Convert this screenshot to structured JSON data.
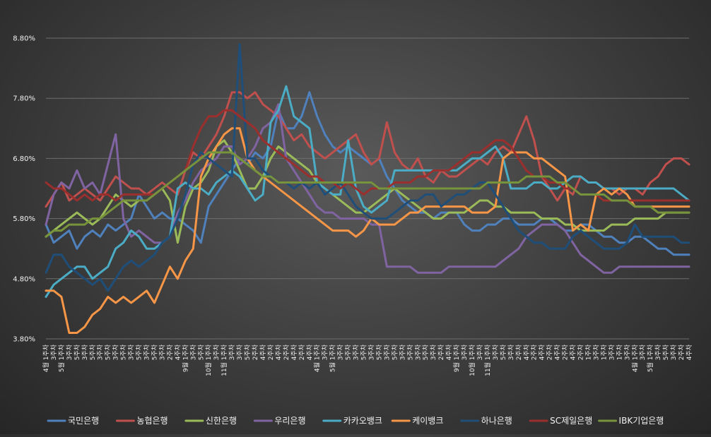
{
  "chart_data": {
    "type": "line",
    "ylim": [
      3.8,
      8.8
    ],
    "y_ticks": [
      "3.80%",
      "4.80%",
      "5.80%",
      "6.80%",
      "7.80%",
      "8.80%"
    ],
    "y_tick_values": [
      3.8,
      4.8,
      5.8,
      6.8,
      7.8,
      8.8
    ],
    "grid": true,
    "legend_position": "bottom",
    "x_labels": [
      "4월 1주차",
      "3주차",
      "5월 1주차",
      "3주차",
      "5주차",
      "3주차",
      "5주차",
      "3주차",
      "5주차",
      "3주차",
      "5주차",
      "3주차",
      "5주차",
      "3주차",
      "5주차",
      "3주차",
      "2주차",
      "4주차",
      "9월 1주차",
      "3주차",
      "5주차",
      "10월 1주차",
      "3주차",
      "11월 1주차",
      "3주차",
      "3주차",
      "5주차",
      "2주차",
      "4주차",
      "2주차",
      "4주차",
      "2주차",
      "4주차",
      "2주차",
      "4주차",
      "4월 1주차",
      "3주차",
      "5월 1주차",
      "3주차",
      "5주차",
      "3주차",
      "5주차",
      "3주차",
      "5주차",
      "3주차",
      "5주차",
      "3주차",
      "5주차",
      "3주차",
      "5주차",
      "3주차",
      "2주차",
      "4주차",
      "9월 1주차",
      "3주차",
      "10월 1주차",
      "3주차",
      "11월 1주차",
      "3주차",
      "5주차",
      "3주차",
      "2주차",
      "4주차",
      "2주차",
      "4주차",
      "2주차",
      "4주차",
      "2주차",
      "4주차",
      "2주차",
      "1주차",
      "3주차",
      "1주차",
      "3주차",
      "1주차",
      "3주차",
      "4월 1주차",
      "3주차",
      "5월 1주차",
      "3주차",
      "5주차",
      "3주차",
      "2주차",
      "4주차"
    ],
    "series": [
      {
        "name": "국민은행",
        "color": "#4f81bd",
        "values": [
          5.7,
          5.4,
          5.5,
          5.6,
          5.3,
          5.5,
          5.6,
          5.5,
          5.7,
          5.6,
          5.7,
          5.8,
          6.2,
          6.0,
          5.8,
          5.9,
          5.8,
          5.8,
          5.7,
          5.6,
          5.4,
          6.0,
          6.2,
          6.4,
          6.6,
          6.8,
          6.7,
          6.9,
          6.8,
          7.0,
          7.6,
          7.3,
          7.3,
          7.5,
          7.9,
          7.5,
          7.2,
          7.0,
          6.9,
          7.0,
          6.9,
          6.8,
          6.7,
          6.8,
          6.5,
          6.3,
          6.1,
          6.0,
          5.9,
          5.9,
          5.8,
          5.9,
          5.9,
          5.9,
          5.7,
          5.6,
          5.6,
          5.7,
          5.7,
          5.8,
          5.8,
          5.7,
          5.7,
          5.7,
          5.8,
          5.8,
          5.7,
          5.6,
          5.6,
          5.7,
          5.7,
          5.6,
          5.5,
          5.5,
          5.4,
          5.4,
          5.5,
          5.5,
          5.4,
          5.3,
          5.3,
          5.2,
          5.2,
          5.2
        ]
      },
      {
        "name": "농협은행",
        "color": "#c0504d",
        "values": [
          6.0,
          6.2,
          6.4,
          6.1,
          6.2,
          6.3,
          6.2,
          6.1,
          6.3,
          6.5,
          6.4,
          6.3,
          6.3,
          6.2,
          6.3,
          6.4,
          6.3,
          6.2,
          6.6,
          6.9,
          6.8,
          7.0,
          7.2,
          7.5,
          7.9,
          7.9,
          7.8,
          7.9,
          7.7,
          7.6,
          7.5,
          7.3,
          7.1,
          7.2,
          7.0,
          6.9,
          6.8,
          6.9,
          7.0,
          7.1,
          7.2,
          6.9,
          6.7,
          6.8,
          7.4,
          6.9,
          6.7,
          6.6,
          6.8,
          6.5,
          6.4,
          6.6,
          6.5,
          6.5,
          6.6,
          6.7,
          6.8,
          6.7,
          6.9,
          7.0,
          6.9,
          7.2,
          7.5,
          7.1,
          6.5,
          6.3,
          6.1,
          6.3,
          6.2,
          6.5,
          6.4,
          6.4,
          6.3,
          6.3,
          6.2,
          6.3,
          6.3,
          6.2,
          6.4,
          6.5,
          6.7,
          6.8,
          6.8,
          6.7
        ]
      },
      {
        "name": "신한은행",
        "color": "#9bbb59",
        "values": [
          5.5,
          5.6,
          5.7,
          5.8,
          5.9,
          5.8,
          5.7,
          5.8,
          6.0,
          6.2,
          6.1,
          6.0,
          6.1,
          6.1,
          6.2,
          6.3,
          6.1,
          5.4,
          6.0,
          6.3,
          6.4,
          6.6,
          7.0,
          7.1,
          6.9,
          6.6,
          6.3,
          6.3,
          6.5,
          6.8,
          7.0,
          6.9,
          6.8,
          6.7,
          6.6,
          6.4,
          6.3,
          6.2,
          6.1,
          6.0,
          5.9,
          5.9,
          6.0,
          6.1,
          6.2,
          6.3,
          6.2,
          6.1,
          6.0,
          5.9,
          5.8,
          5.8,
          5.9,
          5.9,
          5.9,
          6.0,
          6.1,
          6.1,
          6.0,
          6.0,
          5.9,
          5.9,
          5.9,
          5.9,
          5.8,
          5.8,
          5.8,
          5.7,
          5.7,
          5.6,
          5.6,
          5.6,
          5.6,
          5.7,
          5.7,
          5.7,
          5.8,
          5.8,
          5.8,
          5.8,
          5.9,
          5.9,
          5.9,
          5.9
        ]
      },
      {
        "name": "우리은행",
        "color": "#8064a2",
        "values": [
          5.7,
          6.2,
          6.4,
          6.3,
          6.6,
          6.3,
          6.4,
          6.2,
          6.7,
          7.2,
          5.8,
          5.5,
          5.6,
          5.5,
          5.4,
          5.4,
          5.5,
          5.9,
          6.1,
          6.4,
          6.6,
          6.7,
          6.8,
          7.0,
          7.0,
          6.7,
          6.8,
          7.0,
          7.3,
          7.4,
          7.7,
          6.8,
          6.6,
          6.4,
          6.2,
          6.0,
          5.9,
          5.9,
          5.8,
          5.8,
          5.8,
          5.8,
          5.7,
          5.7,
          5.0,
          5.0,
          5.0,
          5.0,
          4.9,
          4.9,
          4.9,
          4.9,
          5.0,
          5.0,
          5.0,
          5.0,
          5.0,
          5.0,
          5.0,
          5.1,
          5.2,
          5.3,
          5.5,
          5.6,
          5.7,
          5.7,
          5.7,
          5.6,
          5.4,
          5.2,
          5.1,
          5.0,
          4.9,
          4.9,
          5.0,
          5.0,
          5.0,
          5.0,
          5.0,
          5.0,
          5.0,
          5.0,
          5.0,
          5.0
        ]
      },
      {
        "name": "카카오뱅크",
        "color": "#4bacc6",
        "values": [
          4.5,
          4.7,
          4.8,
          4.9,
          5.0,
          5.0,
          4.8,
          4.9,
          5.0,
          5.3,
          5.4,
          5.6,
          5.5,
          5.3,
          5.3,
          5.4,
          5.5,
          6.3,
          6.4,
          6.3,
          6.3,
          6.2,
          6.4,
          6.5,
          6.6,
          6.5,
          6.3,
          6.1,
          6.2,
          7.4,
          7.6,
          8.0,
          7.5,
          7.4,
          7.3,
          6.4,
          6.3,
          6.2,
          6.2,
          7.1,
          6.3,
          6.0,
          5.9,
          6.0,
          6.1,
          6.6,
          6.6,
          6.6,
          6.6,
          6.6,
          6.6,
          6.6,
          6.6,
          6.6,
          6.7,
          6.8,
          6.8,
          6.9,
          7.0,
          6.8,
          6.3,
          6.3,
          6.3,
          6.4,
          6.4,
          6.3,
          6.3,
          6.4,
          6.5,
          6.5,
          6.4,
          6.4,
          6.3,
          6.3,
          6.3,
          6.3,
          6.3,
          6.3,
          6.3,
          6.3,
          6.3,
          6.3,
          6.2,
          6.1
        ]
      },
      {
        "name": "케이뱅크",
        "color": "#f79646",
        "values": [
          4.6,
          4.6,
          4.5,
          3.9,
          3.9,
          4.0,
          4.2,
          4.3,
          4.5,
          4.4,
          4.5,
          4.4,
          4.5,
          4.6,
          4.4,
          4.7,
          5.0,
          4.8,
          5.1,
          5.3,
          6.5,
          6.8,
          7.0,
          7.2,
          7.3,
          7.3,
          6.8,
          6.6,
          6.5,
          6.4,
          6.3,
          6.2,
          6.1,
          6.0,
          5.9,
          5.8,
          5.7,
          5.6,
          5.6,
          5.6,
          5.5,
          5.6,
          5.8,
          5.7,
          5.7,
          5.7,
          5.8,
          5.9,
          5.9,
          6.0,
          6.0,
          6.0,
          6.0,
          6.0,
          6.0,
          5.9,
          5.9,
          5.9,
          6.0,
          6.8,
          6.9,
          6.9,
          6.9,
          6.8,
          6.8,
          6.7,
          6.6,
          6.5,
          5.6,
          5.7,
          5.6,
          6.2,
          6.3,
          6.2,
          6.3,
          6.2,
          6.0,
          6.0,
          6.0,
          6.0,
          6.0,
          6.0,
          6.0,
          6.0
        ]
      },
      {
        "name": "하나은행",
        "color": "#1f4e79",
        "values": [
          4.9,
          5.2,
          5.2,
          5.0,
          4.9,
          4.8,
          4.7,
          4.8,
          4.6,
          4.8,
          5.0,
          5.1,
          5.0,
          5.1,
          5.2,
          5.4,
          5.5,
          5.8,
          6.2,
          6.7,
          6.9,
          6.8,
          6.7,
          6.6,
          6.5,
          8.7,
          6.8,
          6.8,
          6.6,
          6.5,
          6.4,
          6.4,
          6.3,
          6.4,
          6.3,
          6.4,
          6.2,
          6.3,
          6.4,
          6.2,
          6.0,
          5.9,
          5.8,
          5.8,
          5.8,
          5.9,
          6.0,
          6.1,
          6.1,
          6.2,
          6.2,
          6.0,
          6.1,
          6.2,
          6.2,
          6.3,
          6.4,
          6.4,
          6.2,
          6.0,
          5.8,
          5.6,
          5.5,
          5.4,
          5.4,
          5.3,
          5.3,
          5.3,
          5.5,
          5.6,
          5.5,
          5.4,
          5.3,
          5.3,
          5.3,
          5.4,
          5.7,
          5.5,
          5.5,
          5.5,
          5.5,
          5.5,
          5.4,
          5.4
        ]
      },
      {
        "name": "SC제일은행",
        "color": "#9b2f2d",
        "values": [
          6.4,
          6.3,
          6.3,
          6.2,
          6.1,
          6.2,
          6.1,
          6.2,
          6.2,
          6.1,
          6.2,
          6.2,
          6.2,
          6.2,
          6.2,
          6.3,
          6.4,
          6.5,
          6.6,
          7.0,
          7.3,
          7.5,
          7.5,
          7.6,
          7.6,
          7.5,
          7.4,
          7.3,
          7.1,
          7.0,
          6.9,
          6.8,
          6.7,
          6.6,
          6.5,
          6.5,
          6.4,
          6.4,
          6.3,
          6.4,
          6.3,
          6.2,
          6.3,
          6.3,
          6.3,
          6.4,
          6.4,
          6.4,
          6.5,
          6.5,
          6.6,
          6.6,
          6.6,
          6.7,
          6.8,
          6.9,
          6.9,
          7.0,
          7.1,
          7.1,
          7.0,
          6.8,
          6.6,
          6.5,
          6.5,
          6.4,
          6.4,
          6.3,
          6.3,
          6.2,
          6.2,
          6.2,
          6.1,
          6.1,
          6.1,
          6.1,
          6.1,
          6.1,
          6.1,
          6.1,
          6.1,
          6.1,
          6.1,
          6.1
        ]
      },
      {
        "name": "IBK기업은행",
        "color": "#77933c",
        "values": [
          5.5,
          5.6,
          5.6,
          5.7,
          5.7,
          5.7,
          5.8,
          5.8,
          5.9,
          6.0,
          6.1,
          6.1,
          6.1,
          6.1,
          6.2,
          6.3,
          6.4,
          6.5,
          6.6,
          6.7,
          6.8,
          6.9,
          6.9,
          6.9,
          6.9,
          6.8,
          6.7,
          6.6,
          6.5,
          6.5,
          6.4,
          6.4,
          6.4,
          6.4,
          6.4,
          6.4,
          6.4,
          6.4,
          6.4,
          6.4,
          6.4,
          6.4,
          6.4,
          6.3,
          6.3,
          6.3,
          6.3,
          6.3,
          6.3,
          6.3,
          6.3,
          6.3,
          6.3,
          6.3,
          6.3,
          6.3,
          6.3,
          6.4,
          6.4,
          6.4,
          6.4,
          6.4,
          6.5,
          6.5,
          6.5,
          6.5,
          6.4,
          6.4,
          6.3,
          6.2,
          6.2,
          6.2,
          6.2,
          6.1,
          6.1,
          6.1,
          6.0,
          6.0,
          6.0,
          5.9,
          5.9,
          5.9,
          5.9,
          5.9
        ]
      }
    ]
  }
}
